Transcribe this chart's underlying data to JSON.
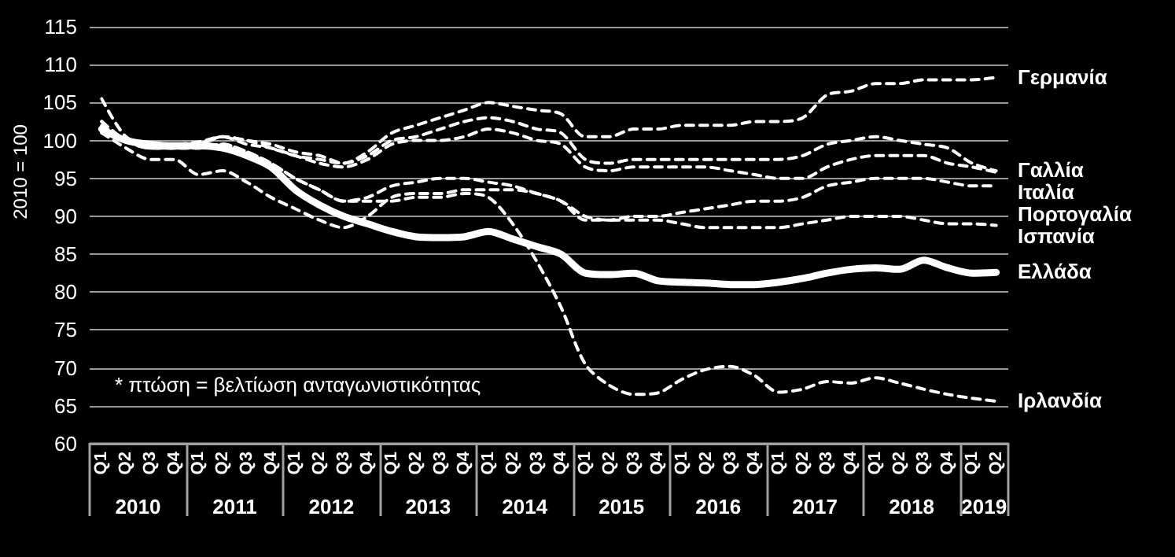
{
  "chart_data": {
    "type": "line",
    "ylabel": "2010 = 100",
    "categories": [
      "Q1",
      "Q2",
      "Q3",
      "Q4",
      "Q1",
      "Q2",
      "Q3",
      "Q4",
      "Q1",
      "Q2",
      "Q3",
      "Q4",
      "Q1",
      "Q2",
      "Q3",
      "Q4",
      "Q1",
      "Q2",
      "Q3",
      "Q4",
      "Q1",
      "Q2",
      "Q3",
      "Q4",
      "Q1",
      "Q2",
      "Q3",
      "Q4",
      "Q1",
      "Q2",
      "Q3",
      "Q4",
      "Q1",
      "Q2",
      "Q3",
      "Q4",
      "Q1",
      "Q2"
    ],
    "ylim": [
      60,
      115
    ],
    "yticks": [
      60,
      65,
      70,
      75,
      80,
      85,
      90,
      95,
      100,
      105,
      110,
      115
    ],
    "grid": "y",
    "legend": false,
    "marker": "none",
    "annotations": [
      "* πτώση = βελτίωση ανταγωνιστικότητας",
      "2010",
      "2011",
      "2012",
      "2013",
      "2014",
      "2015",
      "2016",
      "2017",
      "2018",
      "2019"
    ],
    "series": [
      {
        "name": "Γερμανία",
        "color": "#ffffff",
        "line_style": "dashed",
        "values": [
          105.5,
          100.5,
          99.5,
          99.5,
          99.8,
          100.5,
          100,
          99.5,
          98.5,
          98,
          97,
          98.5,
          101,
          102,
          103,
          104,
          105,
          104.5,
          104,
          103.5,
          100.5,
          100.5,
          101.5,
          101.5,
          102,
          102,
          102,
          102.5,
          102.5,
          103,
          106,
          106.5,
          107.5,
          107.5,
          108,
          108,
          108,
          108.3
        ]
      },
      {
        "name": "Γαλλία",
        "color": "#ffffff",
        "line_style": "dashed",
        "values": [
          102.5,
          100,
          99.5,
          99.5,
          99.5,
          100.5,
          100,
          99,
          98,
          97.5,
          97,
          98,
          100,
          100.5,
          101.5,
          102.5,
          103,
          102.5,
          101.5,
          101,
          97.5,
          97,
          97.5,
          97.5,
          97.5,
          97.5,
          97.5,
          97.5,
          97.5,
          98,
          99.5,
          100,
          100.5,
          100,
          99.5,
          99,
          97,
          96
        ]
      },
      {
        "name": "Ιταλία",
        "color": "#ffffff",
        "line_style": "dashed",
        "values": [
          101,
          100,
          99,
          99,
          99.5,
          100.5,
          99.5,
          99,
          98,
          97,
          96.5,
          97.5,
          99.5,
          100,
          100,
          100.5,
          101.5,
          101,
          100,
          99.5,
          96.5,
          96,
          96.5,
          96.5,
          96.5,
          96.5,
          96,
          95.5,
          95,
          95,
          96.5,
          97.5,
          98,
          98,
          98,
          97,
          96.5,
          95.8
        ]
      },
      {
        "name": "Πορτογαλία",
        "color": "#ffffff",
        "line_style": "dashed",
        "values": [
          102,
          100,
          99,
          99,
          99,
          99.5,
          98.5,
          97,
          95,
          93.5,
          92,
          92.5,
          94,
          94.5,
          95,
          95,
          94.5,
          94,
          93,
          92,
          89.5,
          89.5,
          90,
          90,
          90.5,
          91,
          91.5,
          92,
          92,
          92.5,
          94,
          94.5,
          95,
          95,
          95,
          94.5,
          94,
          94
        ]
      },
      {
        "name": "Ισπανία",
        "color": "#ffffff",
        "line_style": "dashed",
        "values": [
          101,
          99,
          97.5,
          97.5,
          95.5,
          96,
          94.5,
          92.5,
          91,
          89.5,
          88.5,
          90,
          92.5,
          93,
          93,
          93.5,
          93.5,
          93.5,
          93,
          92,
          90,
          89.5,
          89.5,
          89.5,
          89,
          88.5,
          88.5,
          88.5,
          88.5,
          89,
          89.5,
          90,
          90,
          90,
          89.5,
          89,
          89,
          88.8
        ]
      },
      {
        "name": "Ελλάδα",
        "color": "#ffffff",
        "line_style": "solid",
        "values": [
          101.5,
          100,
          99.5,
          99.3,
          99.3,
          99,
          98,
          96.5,
          93.5,
          91.5,
          90,
          89,
          88,
          87.3,
          87.2,
          87.3,
          88,
          87,
          86,
          85,
          82.5,
          82.3,
          82.5,
          81.5,
          81.3,
          81.2,
          81,
          81,
          81.3,
          81.8,
          82.5,
          83,
          83.2,
          83,
          84.2,
          83.2,
          82.5,
          82.6
        ]
      },
      {
        "name": "Ιρλανδία",
        "color": "#ffffff",
        "line_style": "dashed",
        "values": [
          102.5,
          100,
          99,
          99,
          99,
          99.5,
          98.5,
          97,
          95,
          93.5,
          92,
          92,
          92,
          92.5,
          92.5,
          93,
          92.5,
          89,
          84,
          78,
          70.5,
          67.7,
          66.5,
          66.7,
          68.5,
          69.8,
          70.2,
          69,
          66.8,
          67.2,
          68.2,
          68,
          68.7,
          68,
          67.2,
          66.5,
          66,
          65.6
        ]
      }
    ]
  }
}
